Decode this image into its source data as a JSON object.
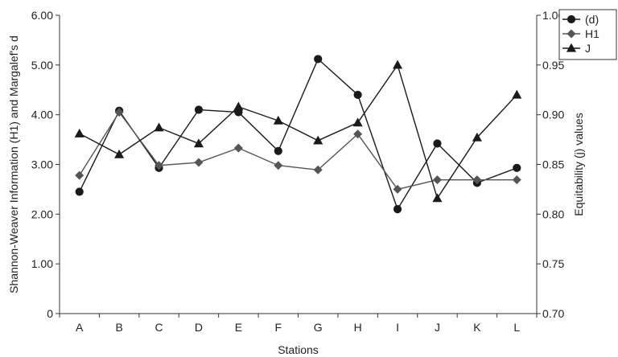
{
  "chart_data": {
    "type": "line",
    "xlabel": "Stations",
    "ylabel_left": "Shannon-Weaver Information (H1) and Margalef's d",
    "ylabel_right": "Equitability (j) values",
    "categories": [
      "A",
      "B",
      "C",
      "D",
      "E",
      "F",
      "G",
      "H",
      "I",
      "J",
      "K",
      "L"
    ],
    "ylim_left": [
      0,
      6
    ],
    "yticks_left": [
      "0",
      "1.00",
      "2.00",
      "3.00",
      "4.00",
      "5.00",
      "6.00"
    ],
    "ylim_right": [
      0.7,
      1.0
    ],
    "yticks_right": [
      "0.70",
      "0.75",
      "0.80",
      "0.85",
      "0.90",
      "0.95",
      "1.00"
    ],
    "grid": false,
    "legend_position": "top-right",
    "series": [
      {
        "name": "(d)",
        "axis": "left",
        "marker": "circle",
        "color": "#1a1a1a",
        "values": [
          2.45,
          4.08,
          2.93,
          4.1,
          4.05,
          3.27,
          5.12,
          4.4,
          2.1,
          3.42,
          2.63,
          2.93
        ]
      },
      {
        "name": "H1",
        "axis": "left",
        "marker": "diamond",
        "color": "#555555",
        "values": [
          2.78,
          4.05,
          2.98,
          3.04,
          3.33,
          2.98,
          2.89,
          3.61,
          2.5,
          2.69,
          2.69,
          2.69
        ]
      },
      {
        "name": "J",
        "axis": "right",
        "marker": "triangle",
        "color": "#1a1a1a",
        "values": [
          0.881,
          0.86,
          0.887,
          0.871,
          0.908,
          0.894,
          0.874,
          0.892,
          0.95,
          0.816,
          0.877,
          0.92
        ]
      }
    ]
  }
}
